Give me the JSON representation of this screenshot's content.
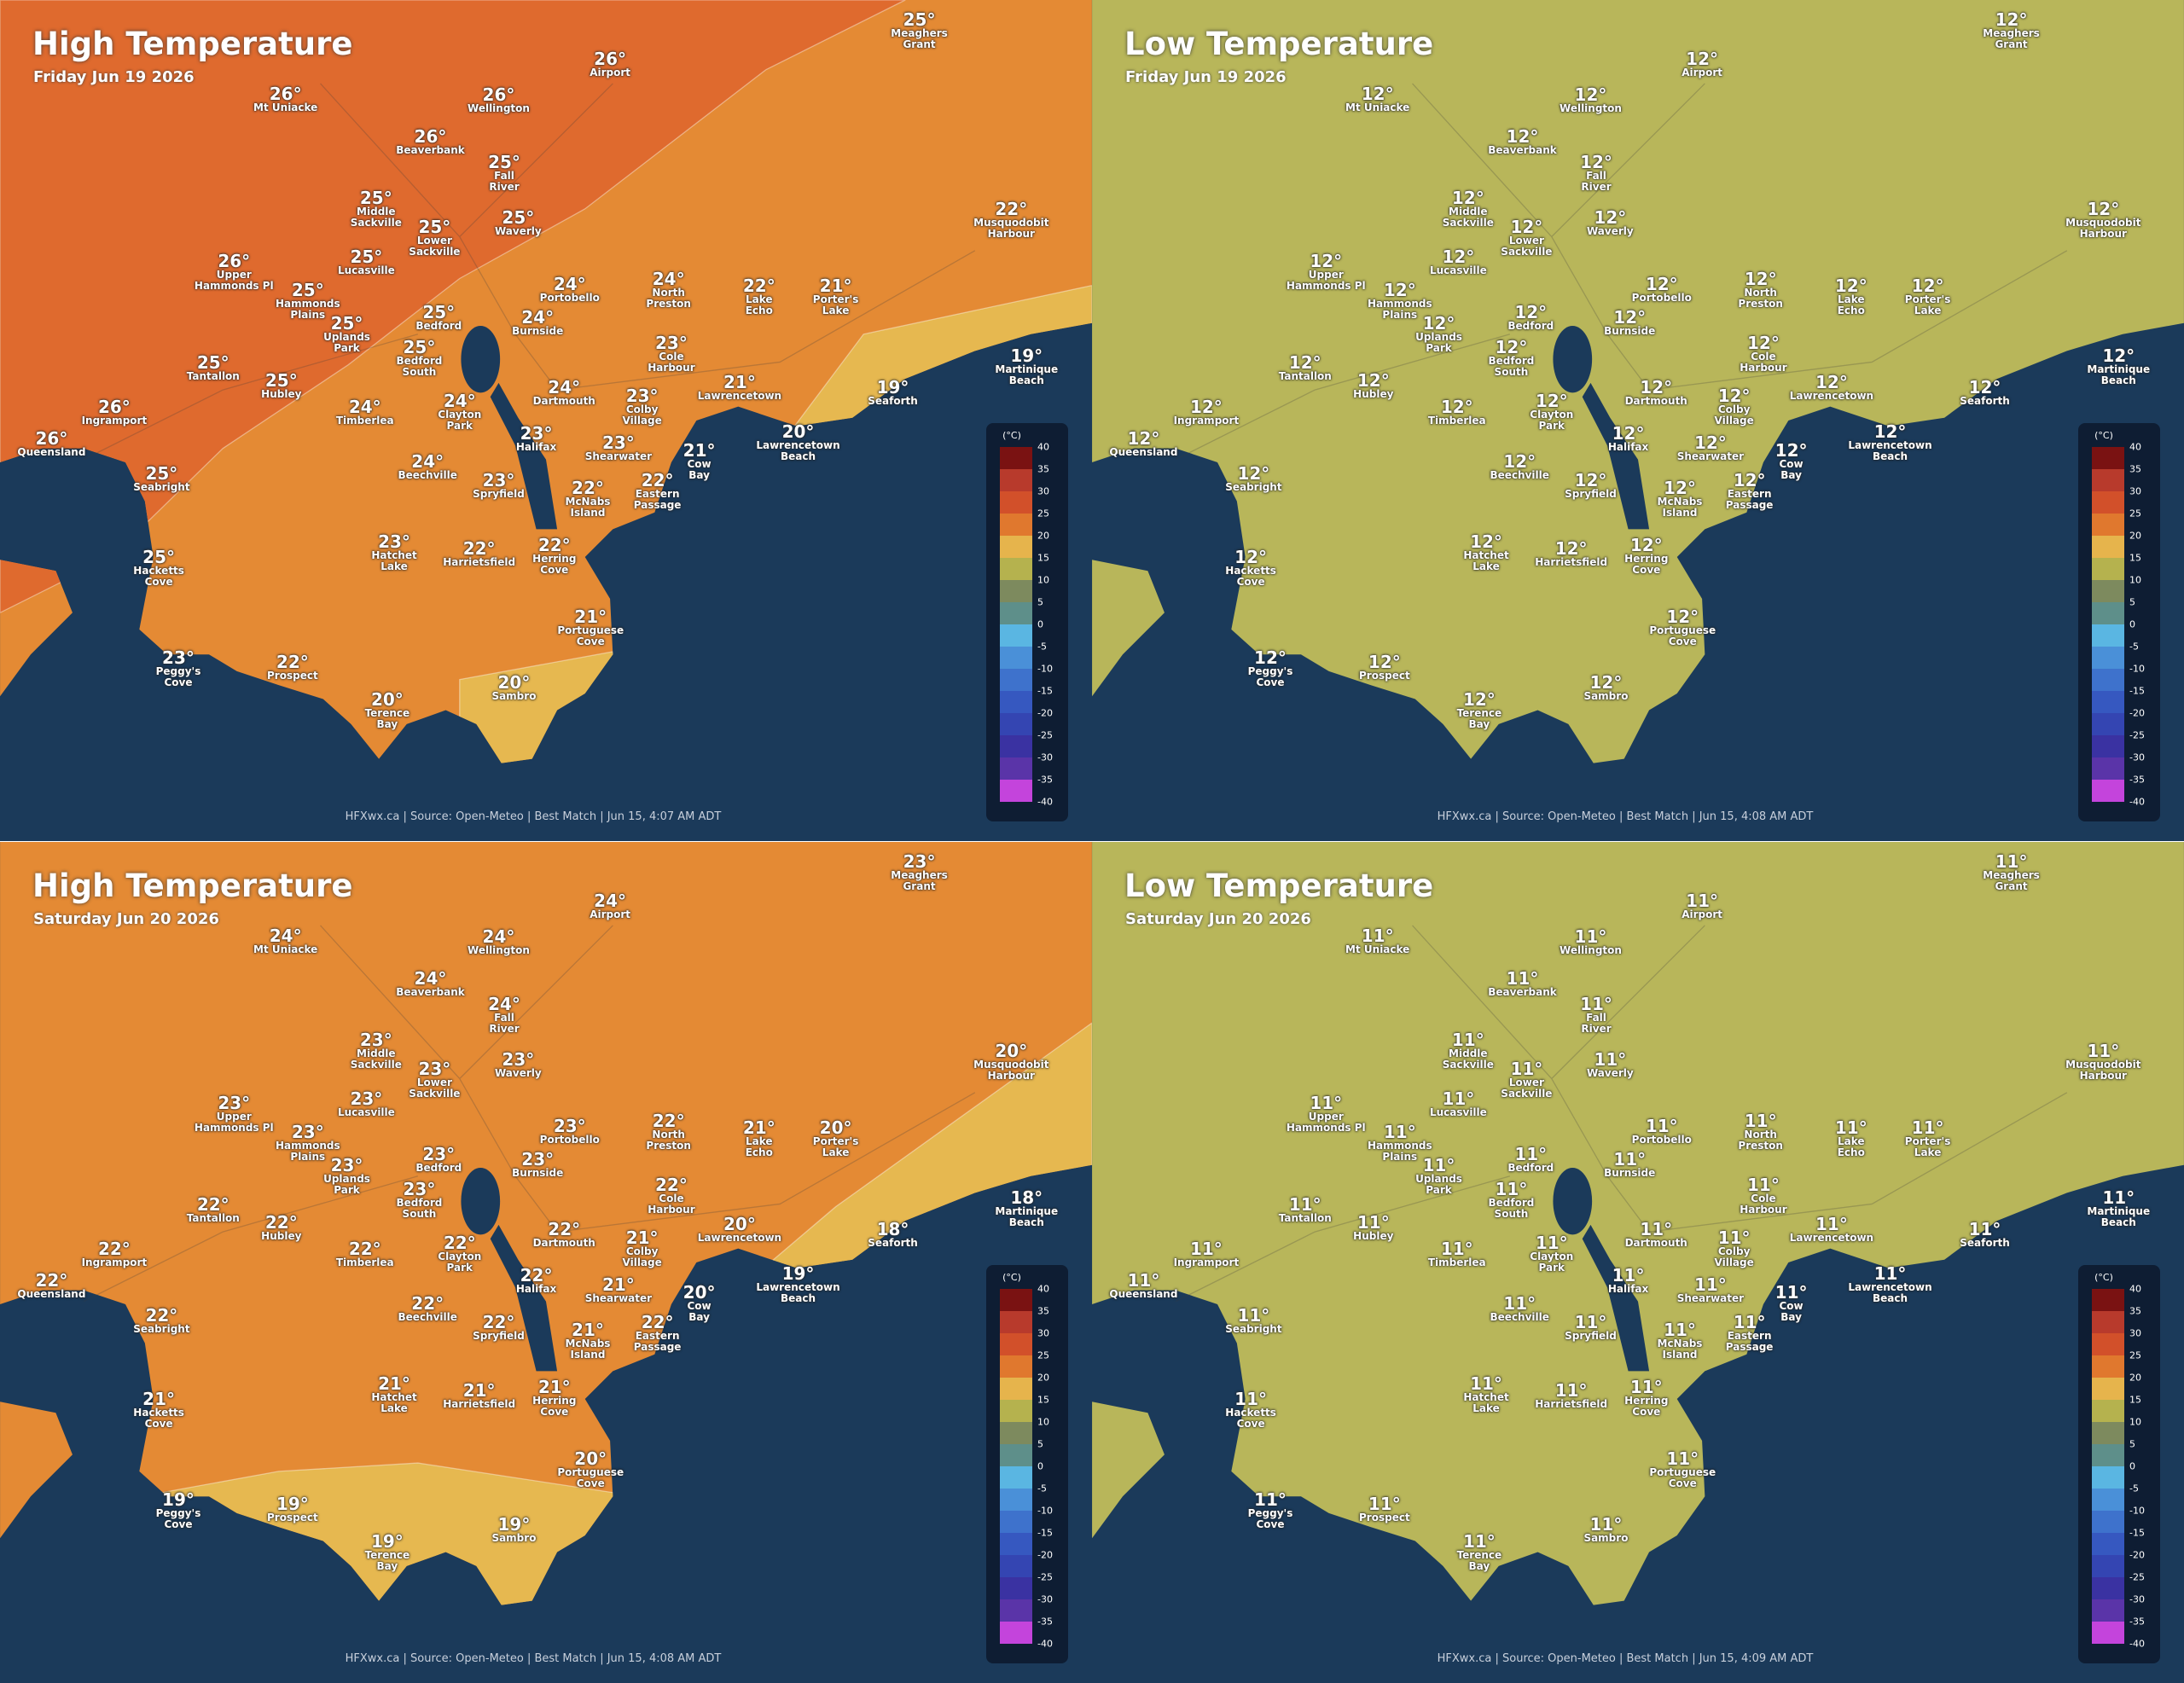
{
  "places": [
    "Meaghers\nGrant",
    "Airport",
    "Mt Uniacke",
    "Wellington",
    "Beaverbank",
    "Fall\nRiver",
    "Middle\nSackville",
    "Lower\nSackville",
    "Waverly",
    "Musquodobit\nHarbour",
    "Lucasville",
    "Upper\nHammonds Pl",
    "Hammonds\nPlains",
    "Portobello",
    "North\nPreston",
    "Lake\nEcho",
    "Porter's\nLake",
    "Bedford",
    "Uplands\nPark",
    "Burnside",
    "Bedford\nSouth",
    "Cole\nHarbour",
    "Tantallon",
    "Hubley",
    "Martinique\nBeach",
    "Dartmouth",
    "Colby\nVillage",
    "Lawrencetown",
    "Seaforth",
    "Ingramport",
    "Timberlea",
    "Clayton\nPark",
    "Queensland",
    "Halifax",
    "Shearwater",
    "Lawrencetown\nBeach",
    "Cow\nBay",
    "Beechville",
    "Seabright",
    "Spryfield",
    "McNabs\nIsland",
    "Eastern\nPassage",
    "Hatchet\nLake",
    "Harrietsfield",
    "Herring\nCove",
    "Hacketts\nCove",
    "Portuguese\nCove",
    "Peggy's\nCove",
    "Prospect",
    "Sambro",
    "Terence\nBay"
  ],
  "legend": {
    "unit": "(°C)",
    "ticks": [
      40,
      35,
      30,
      25,
      20,
      15,
      10,
      5,
      0,
      -5,
      -10,
      -15,
      -20,
      -25,
      -30,
      -35,
      -40
    ],
    "colors": [
      "#7a1212",
      "#b83a2c",
      "#d2502a",
      "#e0782e",
      "#e6b44c",
      "#b5b24e",
      "#7d8a5e",
      "#5e8f8a",
      "#5ab6e2",
      "#4a90d8",
      "#3e72cc",
      "#3658c0",
      "#3445b2",
      "#3a32a2",
      "#5a34a8",
      "#c444dc"
    ]
  },
  "panels": [
    {
      "title": "High Temperature",
      "date": "Friday Jun 19 2026",
      "land_colors": [
        "#e48a34",
        "#df6a2e",
        "#e6b850"
      ],
      "temps": [
        "25°",
        "26°",
        "26°",
        "26°",
        "26°",
        "25°",
        "25°",
        "25°",
        "25°",
        "22°",
        "25°",
        "26°",
        "25°",
        "24°",
        "24°",
        "22°",
        "21°",
        "25°",
        "25°",
        "24°",
        "25°",
        "23°",
        "25°",
        "25°",
        "19°",
        "24°",
        "23°",
        "21°",
        "19°",
        "26°",
        "24°",
        "24°",
        "26°",
        "23°",
        "23°",
        "20°",
        "21°",
        "24°",
        "25°",
        "23°",
        "22°",
        "22°",
        "23°",
        "22°",
        "22°",
        "25°",
        "21°",
        "23°",
        "22°",
        "20°",
        "20°"
      ],
      "footer": "HFXwx.ca | Source: Open-Meteo | Best Match | Jun 15, 4:07 AM ADT"
    },
    {
      "title": "Low Temperature",
      "date": "Friday Jun 19 2026",
      "land_colors": [
        "#b8b65a"
      ],
      "temps": [
        "12°",
        "12°",
        "12°",
        "12°",
        "12°",
        "12°",
        "12°",
        "12°",
        "12°",
        "12°",
        "12°",
        "12°",
        "12°",
        "12°",
        "12°",
        "12°",
        "12°",
        "12°",
        "12°",
        "12°",
        "12°",
        "12°",
        "12°",
        "12°",
        "12°",
        "12°",
        "12°",
        "12°",
        "12°",
        "12°",
        "12°",
        "12°",
        "12°",
        "12°",
        "12°",
        "12°",
        "12°",
        "12°",
        "12°",
        "12°",
        "12°",
        "12°",
        "12°",
        "12°",
        "12°",
        "12°",
        "12°",
        "12°",
        "12°",
        "12°",
        "12°"
      ],
      "footer": "HFXwx.ca | Source: Open-Meteo | Best Match | Jun 15, 4:08 AM ADT"
    },
    {
      "title": "High Temperature",
      "date": "Saturday Jun 20 2026",
      "land_colors": [
        "#e48a34",
        "#e6b850"
      ],
      "temps": [
        "23°",
        "24°",
        "24°",
        "24°",
        "24°",
        "24°",
        "23°",
        "23°",
        "23°",
        "20°",
        "23°",
        "23°",
        "23°",
        "23°",
        "22°",
        "21°",
        "20°",
        "23°",
        "23°",
        "23°",
        "23°",
        "22°",
        "22°",
        "22°",
        "18°",
        "22°",
        "21°",
        "20°",
        "18°",
        "22°",
        "22°",
        "22°",
        "22°",
        "22°",
        "21°",
        "19°",
        "20°",
        "22°",
        "22°",
        "22°",
        "21°",
        "22°",
        "21°",
        "21°",
        "21°",
        "21°",
        "20°",
        "19°",
        "19°",
        "19°",
        "19°"
      ],
      "footer": "HFXwx.ca | Source: Open-Meteo | Best Match | Jun 15, 4:08 AM ADT"
    },
    {
      "title": "Low Temperature",
      "date": "Saturday Jun 20 2026",
      "land_colors": [
        "#b8b65a"
      ],
      "temps": [
        "11°",
        "11°",
        "11°",
        "11°",
        "11°",
        "11°",
        "11°",
        "11°",
        "11°",
        "11°",
        "11°",
        "11°",
        "11°",
        "11°",
        "11°",
        "11°",
        "11°",
        "11°",
        "11°",
        "11°",
        "11°",
        "11°",
        "11°",
        "11°",
        "11°",
        "11°",
        "11°",
        "11°",
        "11°",
        "11°",
        "11°",
        "11°",
        "11°",
        "11°",
        "11°",
        "11°",
        "11°",
        "11°",
        "11°",
        "11°",
        "11°",
        "11°",
        "11°",
        "11°",
        "11°",
        "11°",
        "11°",
        "11°",
        "11°",
        "11°",
        "11°"
      ],
      "footer": "HFXwx.ca | Source: Open-Meteo | Best Match | Jun 15, 4:09 AM ADT"
    }
  ]
}
